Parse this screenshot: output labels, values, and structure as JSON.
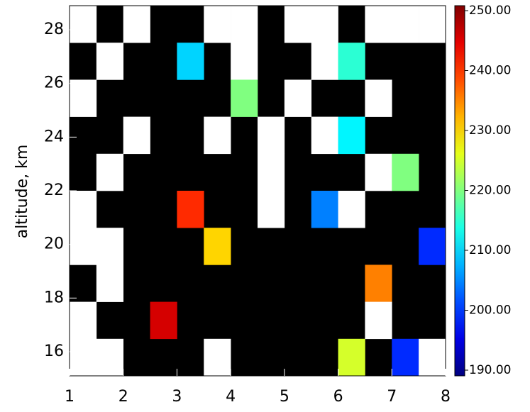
{
  "chart_data": {
    "type": "heatmap",
    "ylabel": "altitude, km",
    "xlim": [
      1,
      8
    ],
    "xticks": [
      1,
      2,
      3,
      4,
      5,
      6,
      7,
      8
    ],
    "ylim": [
      15.1,
      28.9
    ],
    "yticks": [
      16,
      18,
      20,
      22,
      24,
      26,
      28
    ],
    "background": "#000000",
    "z": [
      [
        255,
        null,
        255,
        null,
        null,
        255,
        255,
        null,
        255,
        255,
        null,
        255,
        255,
        255
      ],
      [
        null,
        255,
        null,
        null,
        210,
        null,
        255,
        null,
        null,
        255,
        215,
        null,
        null,
        null
      ],
      [
        255,
        null,
        null,
        null,
        null,
        null,
        220,
        null,
        255,
        null,
        null,
        255,
        null,
        null
      ],
      [
        null,
        null,
        255,
        null,
        null,
        255,
        null,
        255,
        null,
        255,
        212,
        null,
        null,
        null
      ],
      [
        null,
        255,
        null,
        null,
        null,
        null,
        null,
        255,
        null,
        null,
        null,
        255,
        220,
        null
      ],
      [
        255,
        null,
        null,
        null,
        240,
        null,
        null,
        255,
        null,
        205,
        255,
        null,
        null,
        null
      ],
      [
        255,
        255,
        null,
        null,
        null,
        230,
        null,
        null,
        null,
        null,
        null,
        null,
        null,
        200
      ],
      [
        null,
        255,
        null,
        null,
        null,
        null,
        null,
        null,
        null,
        null,
        null,
        235,
        null,
        null
      ],
      [
        255,
        null,
        null,
        245,
        null,
        null,
        null,
        null,
        null,
        null,
        null,
        255,
        null,
        null
      ],
      [
        255,
        255,
        null,
        null,
        null,
        255,
        null,
        null,
        null,
        null,
        225,
        null,
        200,
        255
      ]
    ],
    "colorbar": {
      "colormap": "jet",
      "over_color": "#ffffff",
      "lim": [
        190,
        250
      ],
      "ticks": [
        {
          "value": 190,
          "label": "190.00"
        },
        {
          "value": 200,
          "label": "200.00"
        },
        {
          "value": 210,
          "label": "210.00"
        },
        {
          "value": 220,
          "label": "220.00"
        },
        {
          "value": 230,
          "label": "230.00"
        },
        {
          "value": 240,
          "label": "240.00"
        },
        {
          "value": 250,
          "label": "250.00"
        }
      ]
    }
  }
}
